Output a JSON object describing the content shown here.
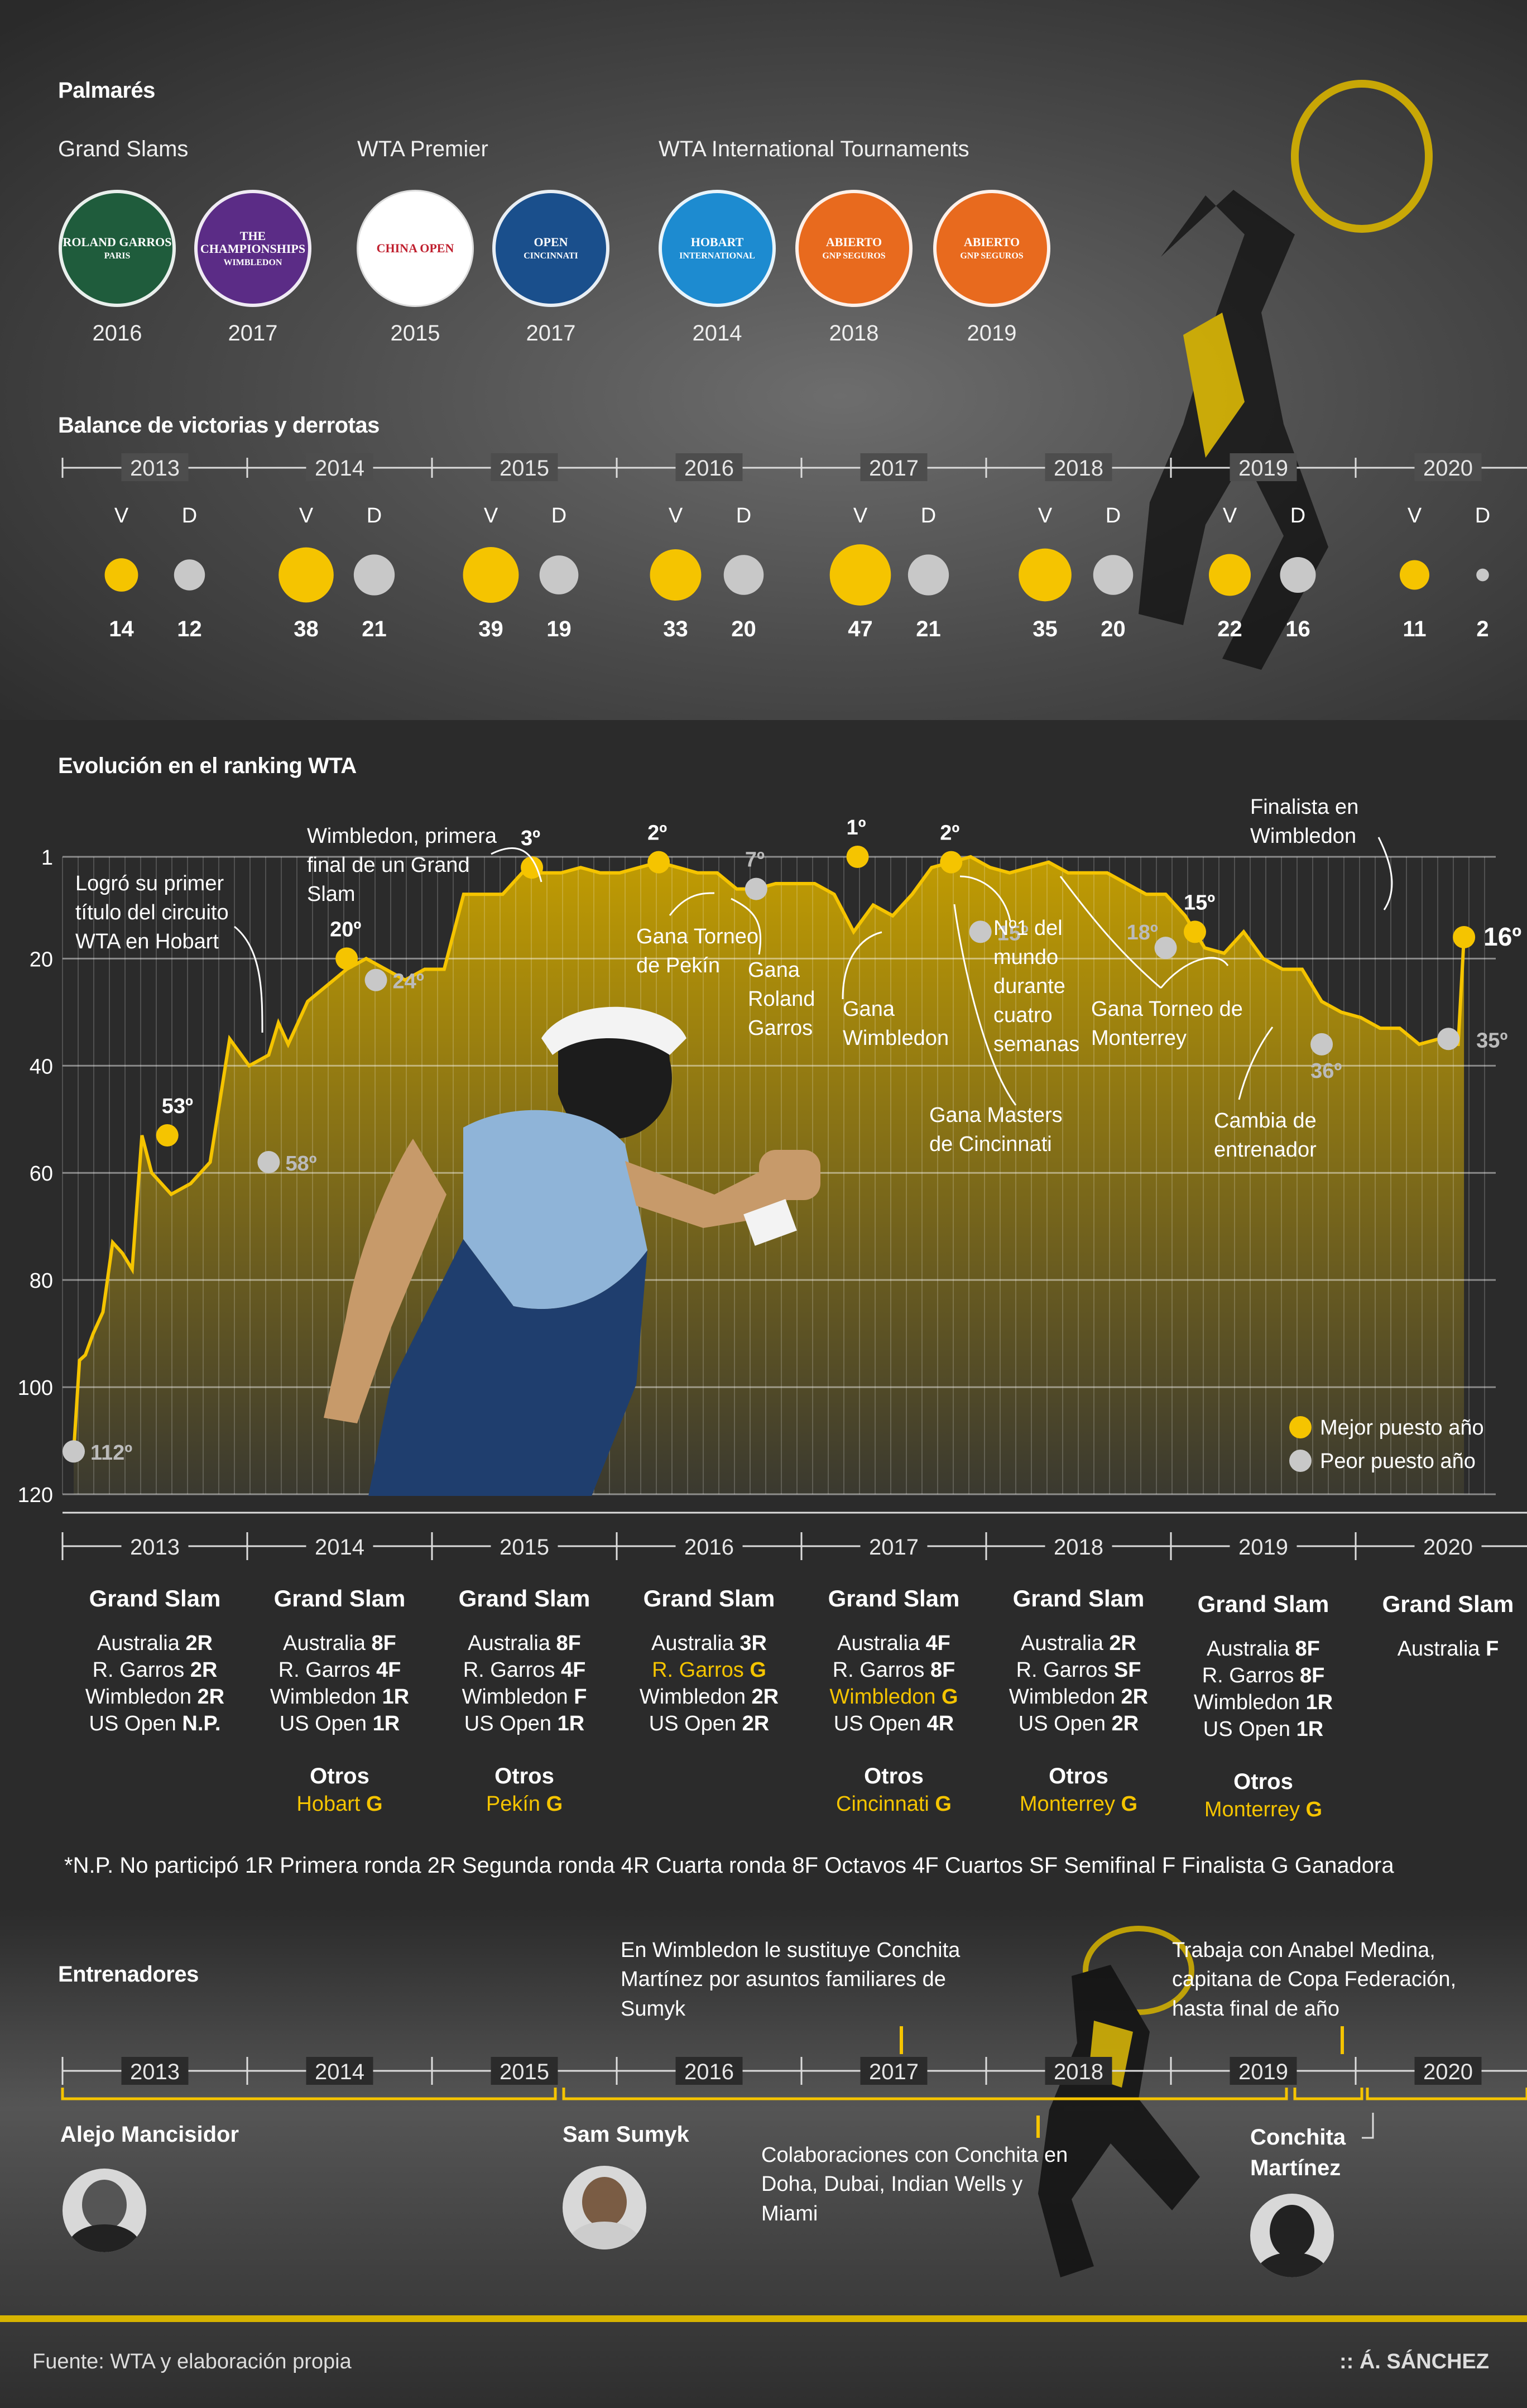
{
  "palmares": {
    "title": "Palmarés",
    "groups": [
      {
        "label": "Grand Slams"
      },
      {
        "label": "WTA Premier"
      },
      {
        "label": "WTA International Tournaments"
      }
    ],
    "logos": [
      {
        "name": "roland-garros-logo",
        "text": "ROLAND GARROS",
        "sub": "PARIS",
        "year": "2016",
        "color": "#1f5c3c"
      },
      {
        "name": "wimbledon-logo",
        "text": "THE CHAMPIONSHIPS",
        "sub": "WIMBLEDON",
        "year": "2017",
        "color": "#5b2c86"
      },
      {
        "name": "china-open-logo",
        "text": "CHINA OPEN",
        "sub": "",
        "year": "2015",
        "color": "#ffffff"
      },
      {
        "name": "cincinnati-logo",
        "text": "OPEN",
        "sub": "CINCINNATI",
        "year": "2017",
        "color": "#1a4f8c"
      },
      {
        "name": "hobart-logo",
        "text": "HOBART",
        "sub": "INTERNATIONAL",
        "year": "2014",
        "color": "#1d8bd0"
      },
      {
        "name": "abierto-gnp-logo-2018",
        "text": "ABIERTO",
        "sub": "GNP SEGUROS",
        "year": "2018",
        "color": "#e86a1e"
      },
      {
        "name": "abierto-gnp-logo-2019",
        "text": "ABIERTO",
        "sub": "GNP SEGUROS",
        "year": "2019",
        "color": "#e86a1e"
      }
    ]
  },
  "balance": {
    "title": "Balance de victorias y derrotas",
    "v_label": "V",
    "d_label": "D",
    "years": [
      {
        "year": "2013",
        "v": 14,
        "d": 12
      },
      {
        "year": "2014",
        "v": 38,
        "d": 21
      },
      {
        "year": "2015",
        "v": 39,
        "d": 19
      },
      {
        "year": "2016",
        "v": 33,
        "d": 20
      },
      {
        "year": "2017",
        "v": 47,
        "d": 21
      },
      {
        "year": "2018",
        "v": 35,
        "d": 20
      },
      {
        "year": "2019",
        "v": 22,
        "d": 16
      },
      {
        "year": "2020",
        "v": 11,
        "d": 2
      }
    ],
    "colors": {
      "win": "#f5c400",
      "loss": "#c8c8c8"
    }
  },
  "ranking": {
    "title": "Evolución en el ranking WTA",
    "y_ticks": [
      "1",
      "20",
      "40",
      "60",
      "80",
      "100",
      "120"
    ],
    "years": [
      "2013",
      "2014",
      "2015",
      "2016",
      "2017",
      "2018",
      "2019",
      "2020"
    ],
    "annotations": {
      "hobart": "Logró su primer título del circuito WTA en Hobart",
      "wimbledon_final": "Wimbledon, primera final de un Grand Slam",
      "pekin": "Gana Torneo de Pekín",
      "roland": "Gana Roland Garros",
      "gana_wimbledon": "Gana Wimbledon",
      "cincinnati": "Gana Masters de Cincinnati",
      "n1": "Nº1 del mundo durante cuatro semanas",
      "monterrey": "Gana Torneo de Monterrey",
      "entrenador": "Cambia de entrenador",
      "finalista": "Finalista en Wimbledon"
    },
    "point_labels": {
      "p112": "112º",
      "p53": "53º",
      "p58": "58º",
      "p20": "20º",
      "p24": "24º",
      "p3": "3º",
      "p2a": "2º",
      "p7": "7º",
      "p15a": "15º",
      "p1": "1º",
      "p2b": "2º",
      "p18": "18º",
      "p15b": "15º",
      "p36": "36º",
      "p35": "35º",
      "p16": "16º"
    },
    "legend": {
      "best": "Mejor puesto año",
      "worst": "Peor puesto año"
    }
  },
  "chart_data": {
    "type": "area",
    "title": "Evolución en el ranking WTA",
    "xlabel": "",
    "ylabel": "",
    "ylim": [
      120,
      1
    ],
    "x": [
      2013.0,
      2013.03,
      2013.06,
      2013.1,
      2013.15,
      2013.2,
      2013.25,
      2013.3,
      2013.35,
      2013.4,
      2013.45,
      2013.5,
      2013.55,
      2013.6,
      2013.7,
      2013.8,
      2013.9,
      2014.0,
      2014.05,
      2014.1,
      2014.2,
      2014.3,
      2014.4,
      2014.5,
      2014.6,
      2014.7,
      2014.8,
      2014.9,
      2015.0,
      2015.1,
      2015.2,
      2015.3,
      2015.4,
      2015.5,
      2015.6,
      2015.7,
      2015.8,
      2015.9,
      2016.0,
      2016.1,
      2016.2,
      2016.3,
      2016.4,
      2016.5,
      2016.6,
      2016.7,
      2016.8,
      2016.9,
      2017.0,
      2017.1,
      2017.2,
      2017.3,
      2017.4,
      2017.5,
      2017.6,
      2017.65,
      2017.7,
      2017.8,
      2017.9,
      2018.0,
      2018.1,
      2018.2,
      2018.3,
      2018.4,
      2018.5,
      2018.6,
      2018.7,
      2018.8,
      2018.9,
      2019.0,
      2019.1,
      2019.2,
      2019.3,
      2019.4,
      2019.5,
      2019.6,
      2019.7,
      2019.8,
      2019.9,
      2020.0,
      2020.05,
      2020.1,
      2020.13
    ],
    "series": [
      {
        "values": [
          112,
          95,
          94,
          90,
          86,
          73,
          75,
          78,
          53,
          60,
          62,
          64,
          63,
          62,
          58,
          35,
          40,
          38,
          32,
          36,
          28,
          25,
          22,
          20,
          22,
          24,
          22,
          22,
          8,
          8,
          8,
          4,
          4,
          4,
          3,
          4,
          4,
          3,
          2,
          3,
          4,
          4,
          7,
          7,
          6,
          6,
          6,
          8,
          15,
          10,
          12,
          8,
          3,
          2,
          1,
          2,
          3,
          4,
          3,
          2,
          4,
          4,
          4,
          6,
          8,
          8,
          12,
          18,
          19,
          15,
          20,
          22,
          22,
          28,
          30,
          31,
          33,
          33,
          36,
          35,
          36,
          36,
          16
        ]
      }
    ],
    "best": [
      {
        "x": 2013.48,
        "y": 53
      },
      {
        "x": 2014.4,
        "y": 20
      },
      {
        "x": 2015.35,
        "y": 3
      },
      {
        "x": 2016.0,
        "y": 2
      },
      {
        "x": 2017.02,
        "y": 1
      },
      {
        "x": 2017.5,
        "y": 2
      },
      {
        "x": 2018.75,
        "y": 15
      },
      {
        "x": 2020.13,
        "y": 16
      }
    ],
    "worst": [
      {
        "x": 2013.0,
        "y": 112
      },
      {
        "x": 2014.0,
        "y": 58
      },
      {
        "x": 2014.55,
        "y": 24
      },
      {
        "x": 2016.5,
        "y": 7
      },
      {
        "x": 2017.65,
        "y": 15
      },
      {
        "x": 2018.6,
        "y": 18
      },
      {
        "x": 2019.4,
        "y": 36
      },
      {
        "x": 2020.05,
        "y": 35
      }
    ]
  },
  "grandslam": {
    "head": "Grand Slam",
    "otros_head": "Otros",
    "cols": [
      {
        "year": "2013",
        "lines": [
          [
            "Australia ",
            "2R"
          ],
          [
            "R. Garros ",
            "2R"
          ],
          [
            "Wimbledon ",
            "2R"
          ],
          [
            "US Open ",
            "N.P."
          ]
        ],
        "hl": [],
        "otros": ""
      },
      {
        "year": "2014",
        "lines": [
          [
            "Australia ",
            "8F"
          ],
          [
            "R. Garros ",
            "4F"
          ],
          [
            "Wimbledon ",
            "1R"
          ],
          [
            "US Open ",
            "1R"
          ]
        ],
        "hl": [],
        "otros": "Hobart G"
      },
      {
        "year": "2015",
        "lines": [
          [
            "Australia ",
            "8F"
          ],
          [
            "R. Garros ",
            "4F"
          ],
          [
            "Wimbledon ",
            "F"
          ],
          [
            "US Open ",
            "1R"
          ]
        ],
        "hl": [],
        "otros": "Pekín G"
      },
      {
        "year": "2016",
        "lines": [
          [
            "Australia ",
            "3R"
          ],
          [
            "R. Garros ",
            "G"
          ],
          [
            "Wimbledon ",
            "2R"
          ],
          [
            "US Open ",
            "2R"
          ]
        ],
        "hl": [
          1
        ],
        "otros": ""
      },
      {
        "year": "2017",
        "lines": [
          [
            "Australia ",
            "4F"
          ],
          [
            "R. Garros ",
            "8F"
          ],
          [
            "Wimbledon  ",
            "G"
          ],
          [
            "US Open ",
            "4R"
          ]
        ],
        "hl": [
          2
        ],
        "otros": "Cincinnati  G"
      },
      {
        "year": "2018",
        "lines": [
          [
            "Australia ",
            "2R"
          ],
          [
            "R. Garros ",
            "SF"
          ],
          [
            "Wimbledon ",
            "2R"
          ],
          [
            "US Open ",
            "2R"
          ]
        ],
        "hl": [],
        "otros": "Monterrey G"
      },
      {
        "year": "2019",
        "lines": [
          [
            "Australia ",
            "8F"
          ],
          [
            "R. Garros ",
            "8F"
          ],
          [
            "Wimbledon ",
            "1R"
          ],
          [
            "US Open ",
            "1R"
          ]
        ],
        "hl": [],
        "otros": "Monterrey G"
      },
      {
        "year": "2020",
        "lines": [
          [
            "Australia ",
            "F"
          ]
        ],
        "hl": [],
        "otros": ""
      }
    ],
    "footnote": "*N.P. No participó 1R Primera ronda 2R Segunda ronda 4R Cuarta ronda 8F Octavos  4F Cuartos SF Semifinal F Finalista  G Ganadora"
  },
  "coaches": {
    "title": "Entrenadores",
    "years": [
      "2013",
      "2014",
      "2015",
      "2016",
      "2017",
      "2018",
      "2019",
      "2020"
    ],
    "names": [
      "Alejo Mancisidor",
      "Sam Sumyk",
      "Conchita Martínez"
    ],
    "note1": "En Wimbledon le sustituye Conchita Martínez por asuntos familiares de Sumyk",
    "note2": "Colaboraciones con Conchita en Doha, Dubai, Indian Wells y Miami",
    "note3": "Trabaja con Anabel Medina, capitana de Copa Federación, hasta final de año"
  },
  "footer": {
    "source": "Fuente: WTA y elaboración propia",
    "author": ":: Á. SÁNCHEZ"
  }
}
